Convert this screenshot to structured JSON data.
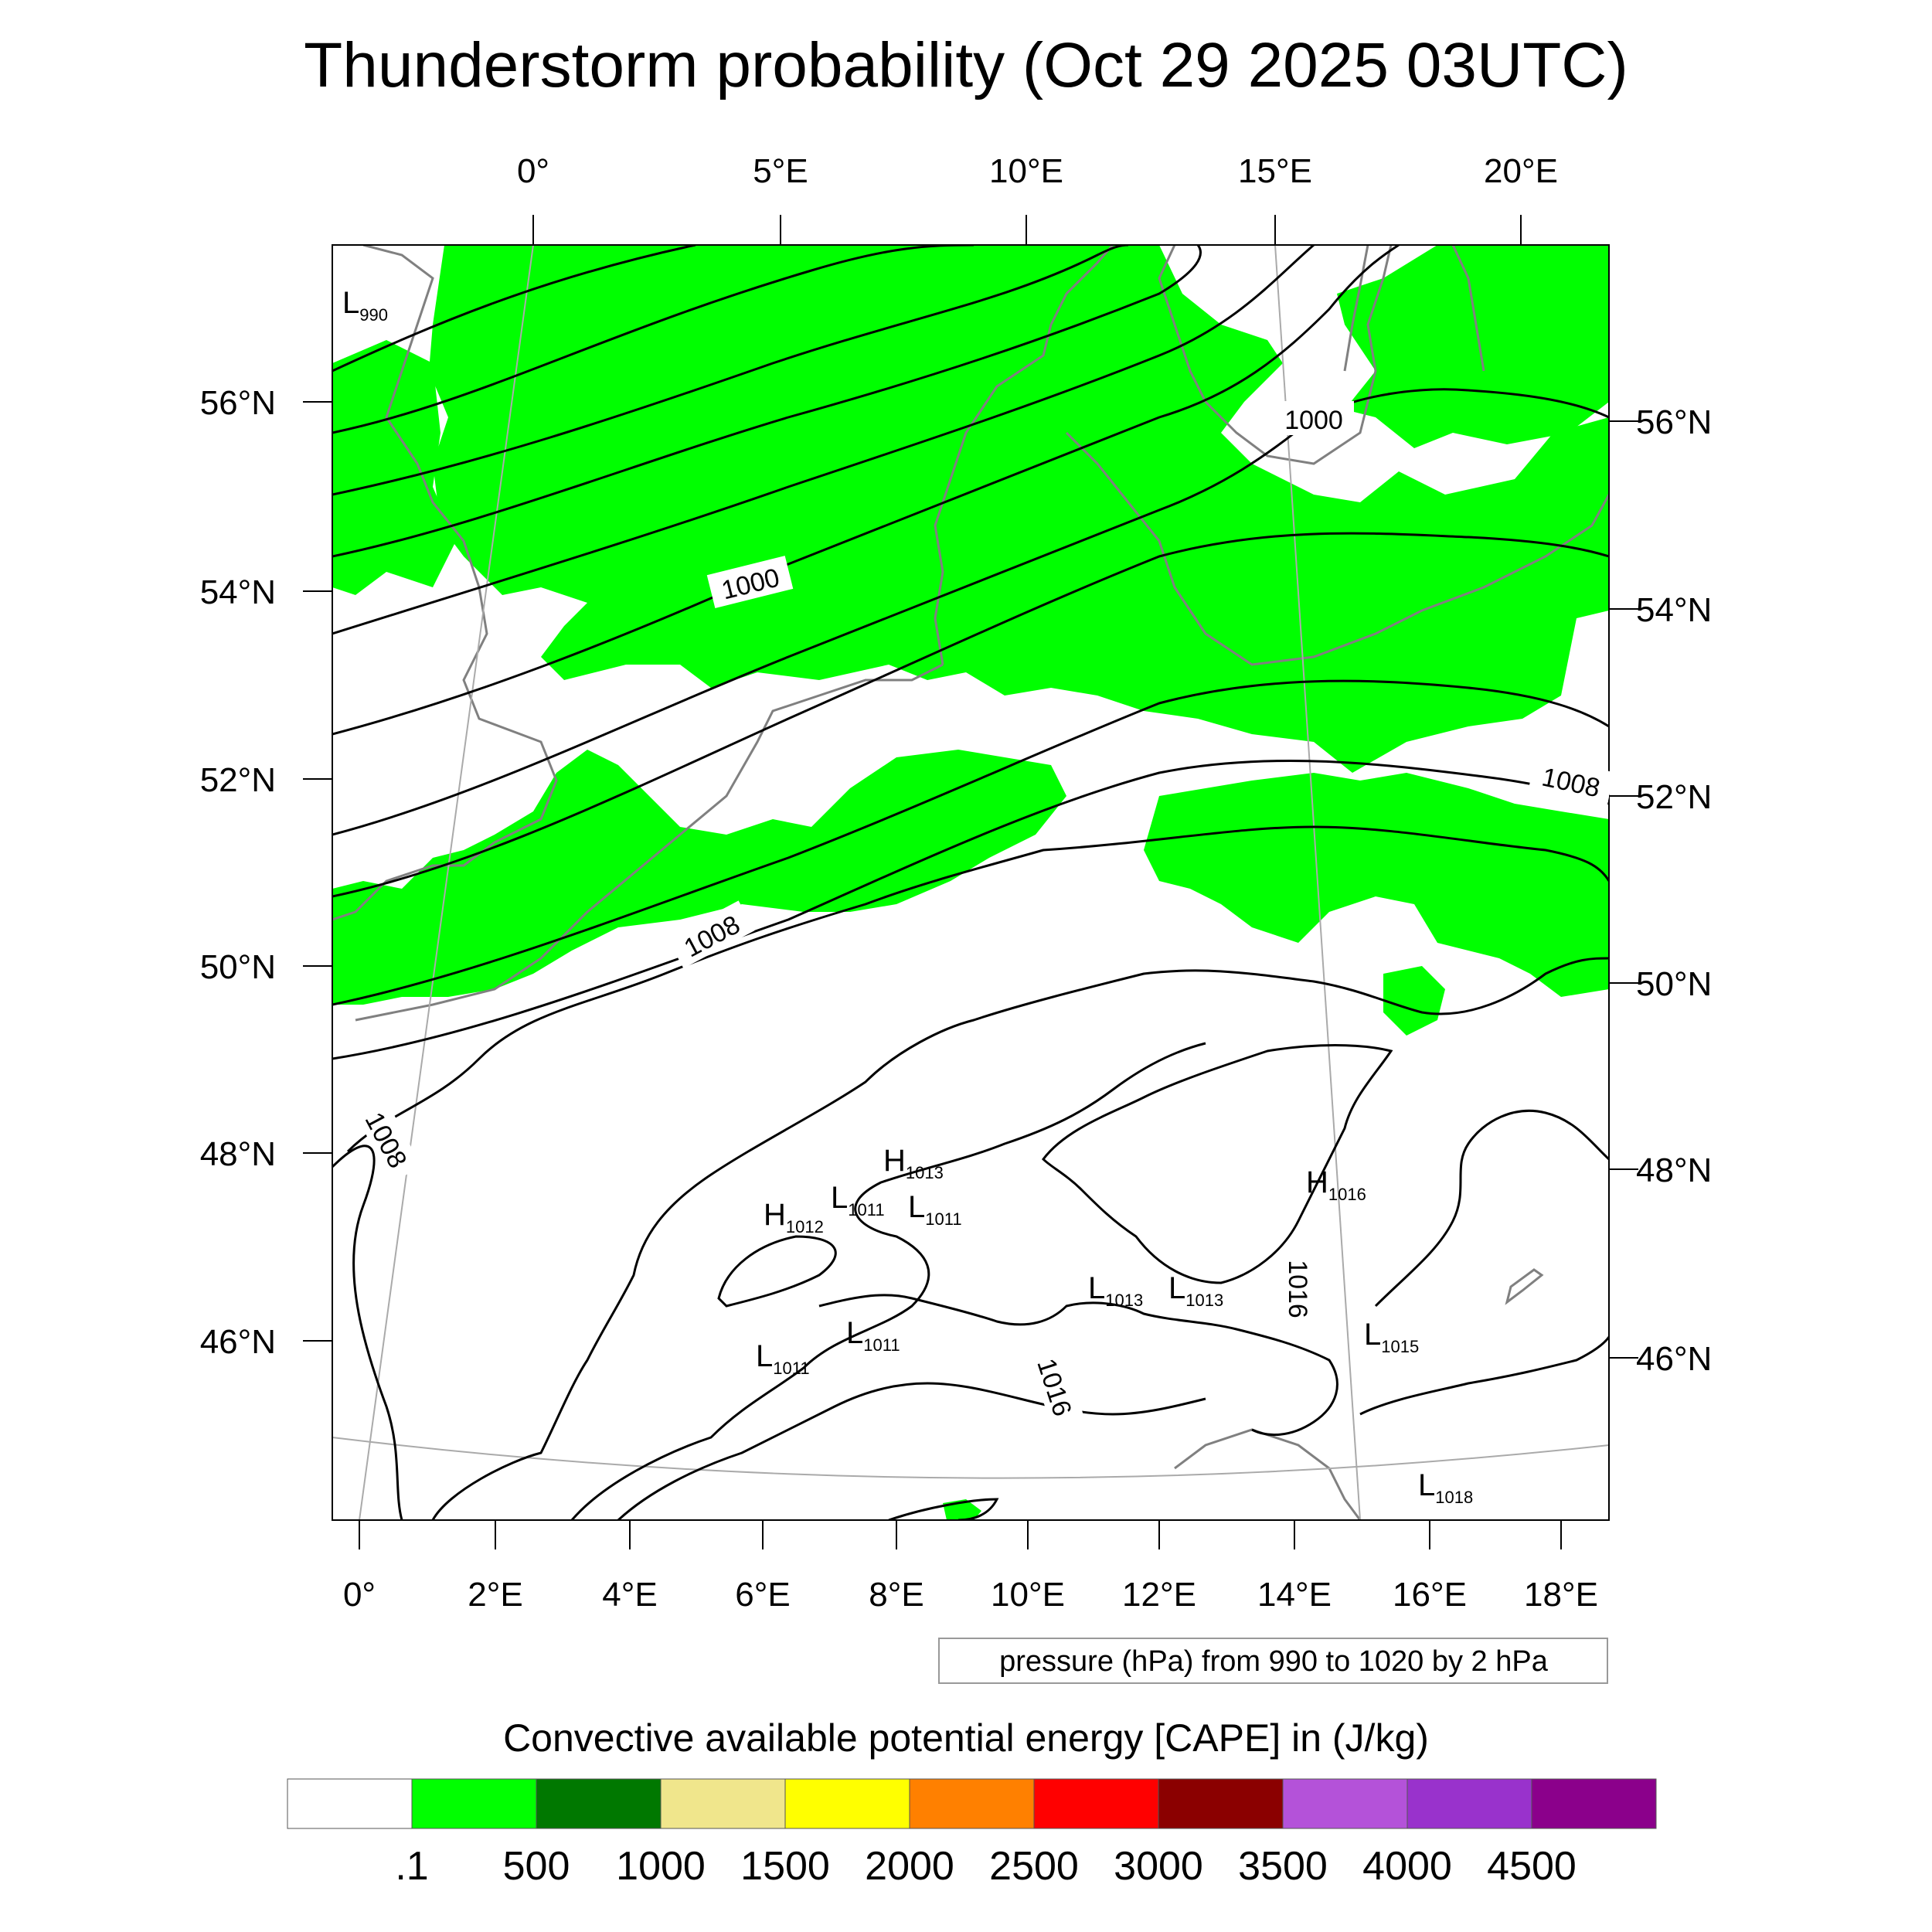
{
  "title": "Thunderstorm probability (Oct 29 2025 03UTC)",
  "axes": {
    "top_ticks": [
      "0°",
      "5°E",
      "10°E",
      "15°E",
      "20°E"
    ],
    "bottom_ticks": [
      "0°",
      "2°E",
      "4°E",
      "6°E",
      "8°E",
      "10°E",
      "12°E",
      "14°E",
      "16°E",
      "18°E"
    ],
    "left_ticks": [
      "56°N",
      "54°N",
      "52°N",
      "50°N",
      "48°N",
      "46°N"
    ],
    "right_ticks": [
      "56°N",
      "54°N",
      "52°N",
      "50°N",
      "48°N",
      "46°N"
    ]
  },
  "contour_labels": [
    {
      "text": "1000",
      "rot": 0
    },
    {
      "text": "1000",
      "rot": -14
    },
    {
      "text": "1008",
      "rot": 12
    },
    {
      "text": "1008",
      "rot": -28
    },
    {
      "text": "1008",
      "rot": 62
    },
    {
      "text": "1016",
      "rot": 90
    },
    {
      "text": "1016",
      "rot": 72
    }
  ],
  "pressure_centers": [
    {
      "letter": "L",
      "value": "990"
    },
    {
      "letter": "H",
      "value": "1013"
    },
    {
      "letter": "H",
      "value": "1012"
    },
    {
      "letter": "L",
      "value": "1011"
    },
    {
      "letter": "L",
      "value": "1011"
    },
    {
      "letter": "H",
      "value": "1016"
    },
    {
      "letter": "L",
      "value": "1013"
    },
    {
      "letter": "L",
      "value": "1013"
    },
    {
      "letter": "L",
      "value": "1011"
    },
    {
      "letter": "L",
      "value": "1011"
    },
    {
      "letter": "L",
      "value": "1015"
    },
    {
      "letter": "L",
      "value": "1018"
    }
  ],
  "contour_info": "pressure (hPa) from 990 to 1020 by 2 hPa",
  "colorbar": {
    "title": "Convective available potential energy [CAPE] in (J/kg)",
    "colors": [
      "#ffffff",
      "#00ff00",
      "#007800",
      "#f0e68c",
      "#ffff00",
      "#ff8000",
      "#ff0000",
      "#8b0000",
      "#b452d9",
      "#9932cc",
      "#8b008b"
    ],
    "labels": [
      ".1",
      "500",
      "1000",
      "1500",
      "2000",
      "2500",
      "3000",
      "3500",
      "4000",
      "4500"
    ]
  },
  "colors": {
    "cape_fill": "#00ff00",
    "isobar": "#000000",
    "coastline": "#808080"
  }
}
